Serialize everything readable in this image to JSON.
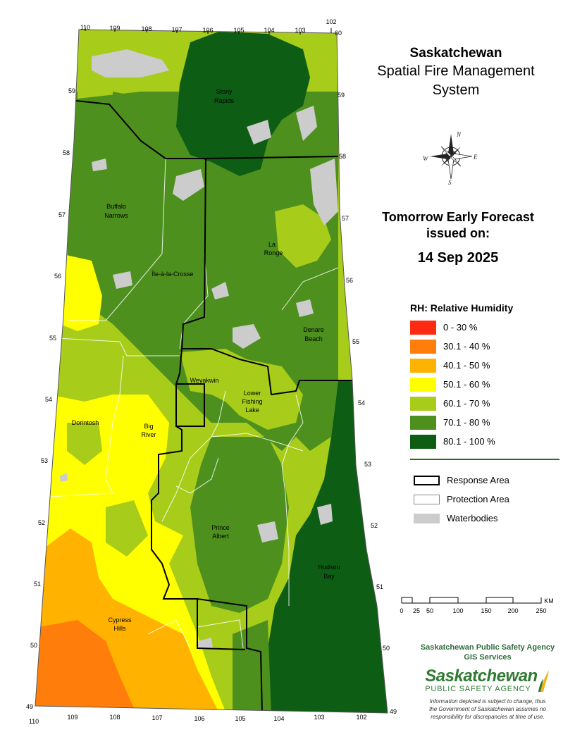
{
  "title": {
    "line1": "Saskatchewan",
    "line2": "Spatial Fire Management",
    "line3": "System"
  },
  "forecast": {
    "line1": "Tomorrow Early Forecast",
    "line2": "issued on:",
    "date": "14 Sep 2025"
  },
  "compass": {
    "n": "N",
    "s": "S",
    "e": "E",
    "w": "W"
  },
  "legend": {
    "title": "RH: Relative Humidity",
    "classes": [
      {
        "label": "0 - 30 %",
        "color": "#ff2a12"
      },
      {
        "label": "30.1 - 40 %",
        "color": "#ff7d0a"
      },
      {
        "label": "40.1 - 50 %",
        "color": "#ffb300"
      },
      {
        "label": "50.1 - 60 %",
        "color": "#ffff00"
      },
      {
        "label": "60.1 - 70 %",
        "color": "#a8cc1a"
      },
      {
        "label": "70.1 - 80 %",
        "color": "#4e901e"
      },
      {
        "label": "80.1 - 100 %",
        "color": "#0d5e14"
      }
    ],
    "boundary": {
      "response": "Response Area",
      "protection": "Protection Area",
      "waterbodies": "Waterbodies",
      "water_color": "#cccccc"
    }
  },
  "scale": {
    "unit": "KM",
    "ticks": [
      "0",
      "25",
      "50",
      "100",
      "150",
      "200",
      "250"
    ]
  },
  "agency": {
    "name": "Saskatchewan Public Safety Agency",
    "unit": "GIS  Services",
    "logo_main": "Saskatchewan",
    "logo_sub": "PUBLIC SAFETY AGENCY",
    "disclaimer": [
      "Information depicted is subject to change, thus",
      "the Government of Saskatchewan assumes no",
      "responsibility for discrepancies at time of use."
    ]
  },
  "graticule": {
    "top_longitudes": [
      "110",
      "109",
      "108",
      "107",
      "106",
      "105",
      "104",
      "103",
      "102"
    ],
    "bottom_longitudes": [
      "110",
      "109",
      "108",
      "107",
      "106",
      "105",
      "104",
      "103",
      "102"
    ],
    "latitudes_left": [
      "59",
      "58",
      "57",
      "56",
      "55",
      "54",
      "53",
      "52",
      "51",
      "50"
    ],
    "latitudes_right": [
      "59",
      "58",
      "57",
      "56",
      "55",
      "54",
      "53",
      "52",
      "51",
      "50"
    ],
    "corner_top_right": "60",
    "corner_bottom": "49"
  },
  "places": [
    {
      "name": "Stony",
      "name2": "Rapids"
    },
    {
      "name": "Buffalo",
      "name2": "Narrows"
    },
    {
      "name": "La",
      "name2": "Ronge"
    },
    {
      "name": "Île-à-la-Crosse",
      "name2": ""
    },
    {
      "name": "Denare",
      "name2": "Beach"
    },
    {
      "name": "Weyakwin",
      "name2": ""
    },
    {
      "name": "Lower",
      "name2": "Fishing",
      "name3": "Lake"
    },
    {
      "name": "Dorintosh",
      "name2": ""
    },
    {
      "name": "Big",
      "name2": "River"
    },
    {
      "name": "Prince",
      "name2": "Albert"
    },
    {
      "name": "Hudson",
      "name2": "Bay"
    },
    {
      "name": "Cypress",
      "name2": "Hills"
    }
  ]
}
